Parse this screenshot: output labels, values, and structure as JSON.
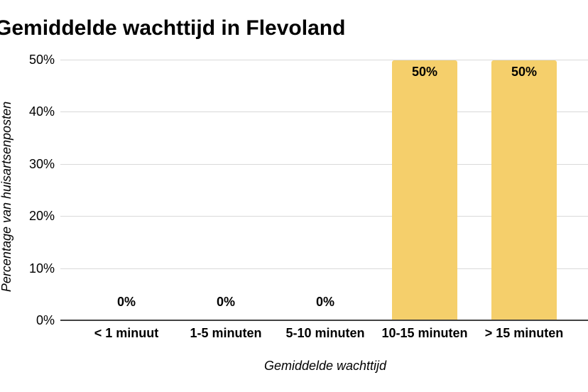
{
  "chart_data": {
    "type": "bar",
    "title": "Gemiddelde wachttijd in Flevoland",
    "xlabel": "Gemiddelde wachttijd",
    "ylabel": "Percentage van huisartsenposten",
    "categories": [
      "< 1 minuut",
      "1-5 minuten",
      "5-10 minuten",
      "10-15 minuten",
      "> 15 minuten"
    ],
    "values": [
      0,
      0,
      0,
      50,
      50
    ],
    "bar_labels": [
      "0%",
      "0%",
      "0%",
      "50%",
      "50%"
    ],
    "y_ticks": [
      0,
      10,
      20,
      30,
      40,
      50
    ],
    "y_tick_labels": [
      "0%",
      "10%",
      "20%",
      "30%",
      "40%",
      "50%"
    ],
    "ylim": [
      0,
      50
    ],
    "grid": "horizontal-only",
    "legend": "none",
    "colors": {
      "bar": "#F5CF6B",
      "gridline": "#D9D9D9",
      "axis": "#424242",
      "text": "#000000",
      "background": "#FFFFFF"
    }
  }
}
